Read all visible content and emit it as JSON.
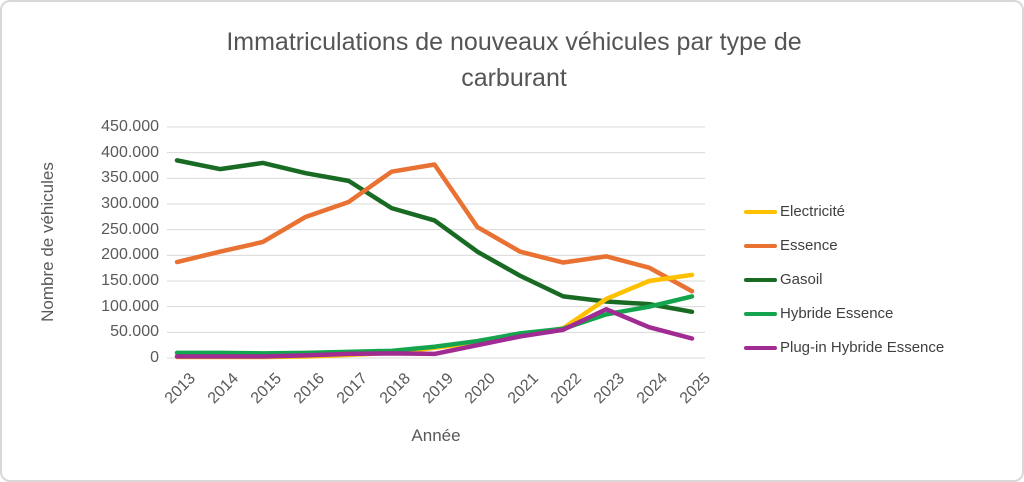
{
  "title": {
    "line1": "Immatriculations de nouveaux véhicules par type de",
    "line2": "carburant"
  },
  "styles": {
    "background": "#FFFFFF",
    "border_color": "#D8D8D8",
    "grid_color": "#D9D9D9",
    "title_color": "#555555",
    "axis_text_color": "#595959",
    "legend_text_color": "#404040"
  },
  "chart_data": {
    "type": "line",
    "title": "Immatriculations de nouveaux véhicules par type de carburant",
    "xlabel": "Année",
    "ylabel": "Nombre de véhicules",
    "x": [
      "2013",
      "2014",
      "2015",
      "2016",
      "2017",
      "2018",
      "2019",
      "2020",
      "2021",
      "2022",
      "2023",
      "2024",
      "2025"
    ],
    "ylim": [
      0,
      450000
    ],
    "ytick_step": 50000,
    "ytick_labels": [
      "0",
      "50.000",
      "100.000",
      "150.000",
      "200.000",
      "250.000",
      "300.000",
      "350.000",
      "400.000",
      "450.000"
    ],
    "grid": true,
    "legend_position": "right",
    "series": [
      {
        "name": "Electricité",
        "color": "#FFC000",
        "values": [
          2000,
          2000,
          2000,
          3000,
          6000,
          10000,
          20000,
          30000,
          43000,
          58000,
          115000,
          150000,
          162000
        ]
      },
      {
        "name": "Essence",
        "color": "#E97132",
        "values": [
          187000,
          207000,
          226000,
          275000,
          304000,
          363000,
          377000,
          255000,
          207000,
          186000,
          198000,
          176000,
          130000
        ]
      },
      {
        "name": "Gasoil",
        "color": "#196B24",
        "values": [
          385000,
          368000,
          380000,
          360000,
          345000,
          292000,
          268000,
          207000,
          160000,
          120000,
          110000,
          105000,
          90000
        ]
      },
      {
        "name": "Hybride Essence",
        "color": "#14A44D",
        "values": [
          10000,
          10000,
          9000,
          10000,
          12000,
          14000,
          22000,
          33000,
          48000,
          57000,
          85000,
          100000,
          120000
        ]
      },
      {
        "name": "Plug-in Hybride Essence",
        "color": "#A02B93",
        "values": [
          3000,
          3000,
          3000,
          5000,
          8000,
          9000,
          8000,
          25000,
          42000,
          55000,
          95000,
          60000,
          38000
        ]
      }
    ]
  }
}
